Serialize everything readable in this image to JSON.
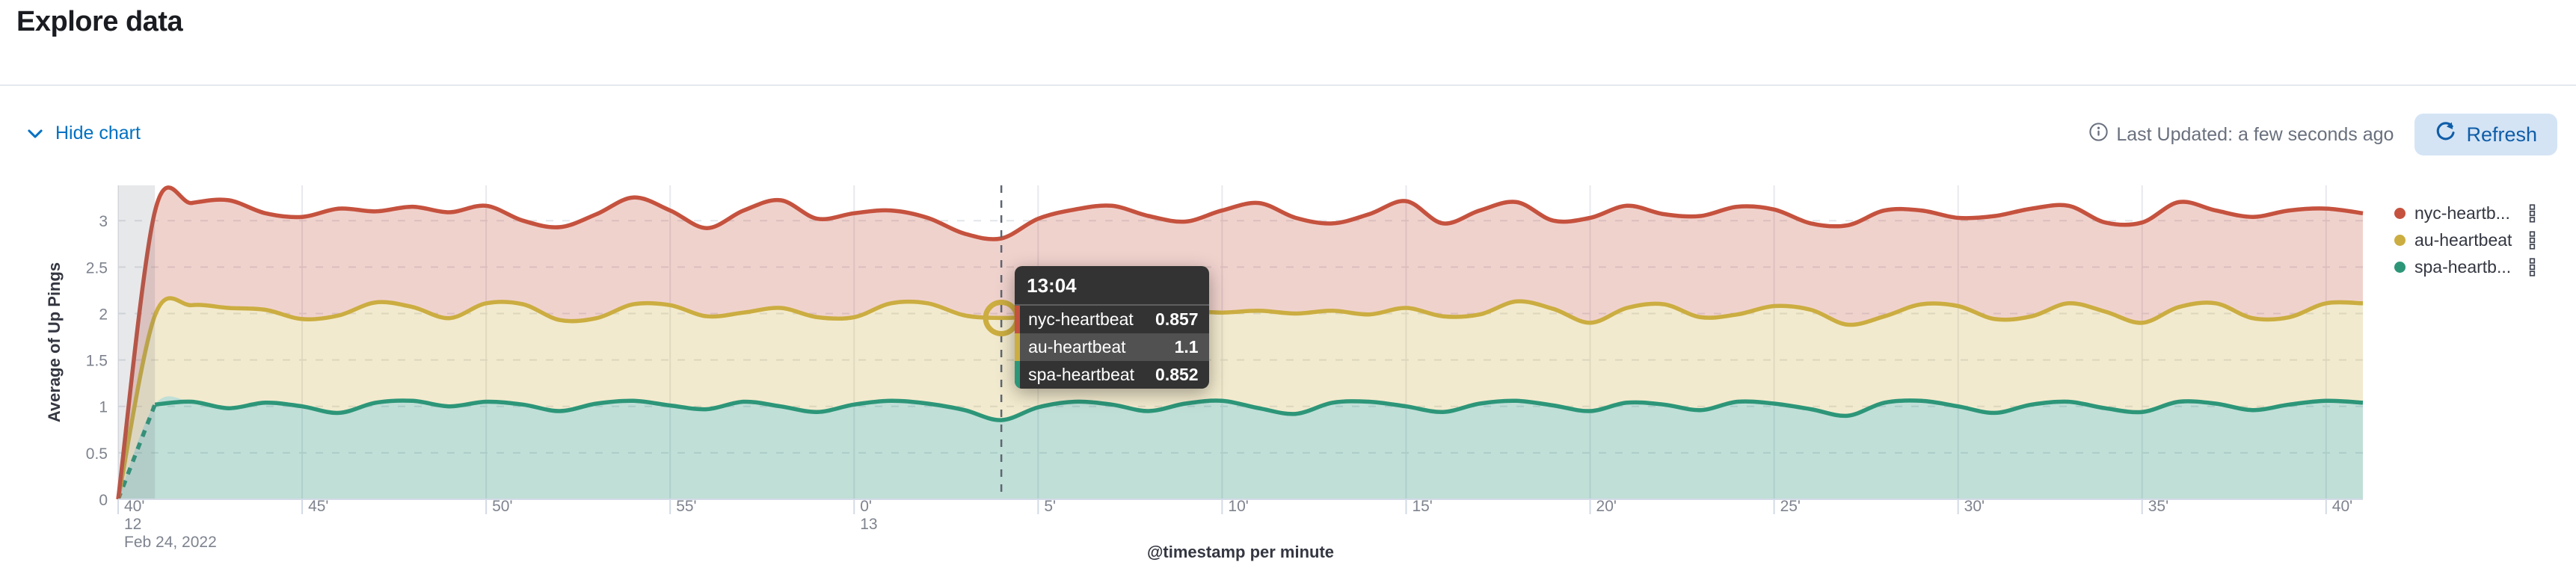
{
  "page": {
    "title": "Explore data"
  },
  "toolbar": {
    "hide_chart_label": "Hide chart",
    "last_updated_label": "Last Updated: a few seconds ago",
    "refresh_label": "Refresh"
  },
  "legend": {
    "position": "right",
    "items": [
      {
        "label": "nyc-heartb...",
        "color": "#C5523E"
      },
      {
        "label": "au-heartbeat",
        "color": "#CBAD41"
      },
      {
        "label": "spa-heartb...",
        "color": "#2D9679"
      }
    ]
  },
  "tooltip": {
    "time": "13:04",
    "rows": [
      {
        "label": "nyc-heartbeat",
        "value": "0.857",
        "color": "#C5523E",
        "highlighted": false
      },
      {
        "label": "au-heartbeat",
        "value": "1.1",
        "color": "#CBAD41",
        "highlighted": true
      },
      {
        "label": "spa-heartbeat",
        "value": "0.852",
        "color": "#2D9679",
        "highlighted": false
      }
    ]
  },
  "chart_data": {
    "type": "area",
    "stacked": true,
    "xlabel": "@timestamp per minute",
    "ylabel": "Average of Up Pings",
    "ylim": [
      0,
      3.38
    ],
    "y_ticks": [
      0,
      0.5,
      1,
      1.5,
      2,
      2.5,
      3
    ],
    "grid": {
      "horizontal": "dashed",
      "vertical": "solid"
    },
    "legend_position": "right",
    "start_time": "12:40",
    "start_date": "Feb 24, 2022",
    "minutes": 61,
    "x_ticks": [
      {
        "m": 0,
        "label": "40'",
        "sub": [
          "12",
          "Feb 24, 2022"
        ]
      },
      {
        "m": 5,
        "label": "45'"
      },
      {
        "m": 10,
        "label": "50'"
      },
      {
        "m": 15,
        "label": "55'"
      },
      {
        "m": 20,
        "label": "0'",
        "sub": [
          "13"
        ]
      },
      {
        "m": 25,
        "label": "5'"
      },
      {
        "m": 30,
        "label": "10'"
      },
      {
        "m": 35,
        "label": "15'"
      },
      {
        "m": 40,
        "label": "20'"
      },
      {
        "m": 45,
        "label": "25'"
      },
      {
        "m": 50,
        "label": "30'"
      },
      {
        "m": 55,
        "label": "35'"
      },
      {
        "m": 60,
        "label": "40'"
      }
    ],
    "stack_order_bottom_to_top": [
      "spa-heartbeat",
      "au-heartbeat",
      "nyc-heartbeat"
    ],
    "partial_bucket_minutes": 1,
    "crosshair": {
      "minute_index": 24,
      "time": "13:04",
      "highlight_series": "au-heartbeat"
    },
    "series": [
      {
        "name": "nyc-heartbeat",
        "color": "#C5523E",
        "fill": "rgba(197,82,62,0.26)",
        "values": [
          0,
          1.12,
          1.1,
          1.16,
          1.04,
          1.1,
          1.15,
          0.98,
          1.08,
          1.14,
          1.05,
          0.9,
          1.0,
          1.12,
          1.15,
          1.02,
          0.95,
          1.1,
          1.16,
          1.06,
          1.12,
          1.0,
          0.92,
          0.88,
          0.857,
          1.05,
          1.14,
          1.1,
          1.02,
          0.96,
          1.1,
          1.16,
          1.03,
          0.94,
          1.08,
          1.15,
          1.0,
          1.12,
          1.07,
          0.95,
          1.13,
          1.1,
          0.97,
          1.09,
          1.16,
          1.04,
          0.93,
          1.07,
          1.14,
          1.01,
          0.95,
          1.11,
          1.16,
          1.05,
          0.96,
          1.08,
          1.13,
          1.0,
          1.09,
          1.15,
          1.02,
          0.97
        ]
      },
      {
        "name": "au-heartbeat",
        "color": "#CBAD41",
        "fill": "rgba(203,173,65,0.26)",
        "values": [
          0,
          0.96,
          1.04,
          1.08,
          1.0,
          0.94,
          1.05,
          1.08,
          1.01,
          0.95,
          1.06,
          1.08,
          0.98,
          0.92,
          1.04,
          1.08,
          1.0,
          0.96,
          1.06,
          1.02,
          0.94,
          1.05,
          1.08,
          1.02,
          1.1,
          0.98,
          0.93,
          1.04,
          1.08,
          1.0,
          0.95,
          1.05,
          1.08,
          0.99,
          0.94,
          1.06,
          1.03,
          0.96,
          1.07,
          1.04,
          0.95,
          1.02,
          1.08,
          1.0,
          0.94,
          1.05,
          1.07,
          0.98,
          0.93,
          1.04,
          1.08,
          1.01,
          0.95,
          1.06,
          1.04,
          0.96,
          1.02,
          1.08,
          0.99,
          0.94,
          1.05,
          1.07
        ]
      },
      {
        "name": "spa-heartbeat",
        "color": "#2D9679",
        "fill": "rgba(45,150,121,0.30)",
        "values": [
          0,
          1.02,
          1.05,
          0.98,
          1.04,
          1.0,
          0.93,
          1.04,
          1.06,
          1.0,
          1.05,
          1.02,
          0.95,
          1.03,
          1.06,
          1.01,
          0.97,
          1.05,
          1.0,
          0.94,
          1.02,
          1.06,
          1.03,
          0.96,
          0.852,
          0.99,
          1.05,
          1.02,
          0.95,
          1.03,
          1.06,
          0.98,
          0.92,
          1.04,
          1.05,
          1.0,
          0.94,
          1.03,
          1.06,
          1.01,
          0.95,
          1.04,
          1.02,
          0.96,
          1.05,
          1.03,
          0.97,
          0.9,
          1.04,
          1.06,
          1.0,
          0.93,
          1.02,
          1.05,
          0.98,
          0.94,
          1.05,
          1.03,
          0.96,
          1.02,
          1.06,
          1.04
        ]
      }
    ]
  }
}
